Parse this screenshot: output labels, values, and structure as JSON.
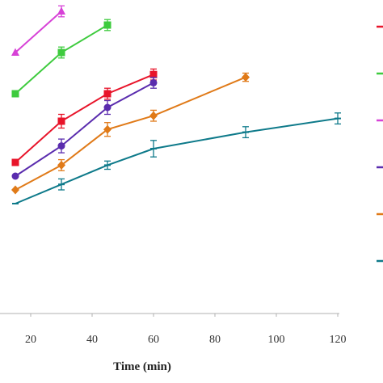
{
  "chart_data": {
    "type": "line",
    "xlabel": "Time (min)",
    "ylabel": "",
    "xlim": [
      0,
      125
    ],
    "ylim": [
      0,
      100
    ],
    "xticks": [
      20,
      40,
      60,
      80,
      100,
      120
    ],
    "grid": false,
    "legend": "right (labels cropped)",
    "series": [
      {
        "color": "#e8142a",
        "marker": "square",
        "points": [
          [
            15,
            55
          ],
          [
            30,
            70
          ],
          [
            45,
            80
          ],
          [
            60,
            87
          ]
        ],
        "error": [
          0,
          2.5,
          2,
          2
        ]
      },
      {
        "color": "#3ecb3e",
        "marker": "square",
        "points": [
          [
            15,
            80
          ],
          [
            30,
            95
          ],
          [
            45,
            105
          ]
        ],
        "error": [
          0,
          2,
          2
        ]
      },
      {
        "color": "#d742d7",
        "marker": "triangle",
        "points": [
          [
            15,
            95
          ],
          [
            30,
            110
          ]
        ],
        "error": [
          0,
          2
        ]
      },
      {
        "color": "#5a2cae",
        "marker": "circle",
        "points": [
          [
            15,
            50
          ],
          [
            30,
            61
          ],
          [
            45,
            75
          ],
          [
            60,
            84
          ]
        ],
        "error": [
          0,
          2.5,
          2.5,
          2
        ]
      },
      {
        "color": "#e07a18",
        "marker": "diamond",
        "points": [
          [
            15,
            45
          ],
          [
            30,
            54
          ],
          [
            45,
            67
          ],
          [
            60,
            72
          ],
          [
            90,
            86
          ]
        ],
        "error": [
          0,
          2,
          2.5,
          2,
          1.5
        ]
      },
      {
        "color": "#0e7a8a",
        "marker": "dash",
        "points": [
          [
            15,
            40
          ],
          [
            30,
            47
          ],
          [
            45,
            54
          ],
          [
            60,
            60
          ],
          [
            90,
            66
          ],
          [
            120,
            71
          ]
        ],
        "error": [
          0,
          2,
          1.5,
          3,
          2,
          2
        ]
      }
    ]
  }
}
